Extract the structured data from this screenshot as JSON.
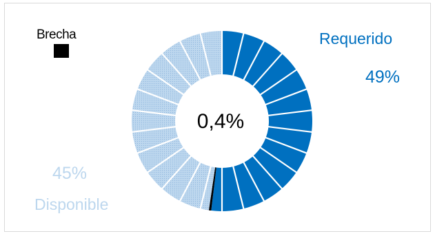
{
  "colors": {
    "requerido": "#0070c0",
    "brecha": "#000000",
    "disponible": "#9dc3e6",
    "disponible_text": "#bdd7ee"
  },
  "chart_data": {
    "type": "pie",
    "style": "donut",
    "segments_count": 26,
    "slices": [
      {
        "name": "Requerido",
        "value": 49,
        "label": "49%"
      },
      {
        "name": "Brecha",
        "value": 0.4,
        "label": "0,4%"
      },
      {
        "name": "Disponible",
        "value": 45,
        "label": "45%"
      }
    ],
    "legend": {
      "requerido_label": "Requerido",
      "brecha_label": "Brecha",
      "disponible_label": "Disponible"
    },
    "center_label": "0,4%"
  }
}
